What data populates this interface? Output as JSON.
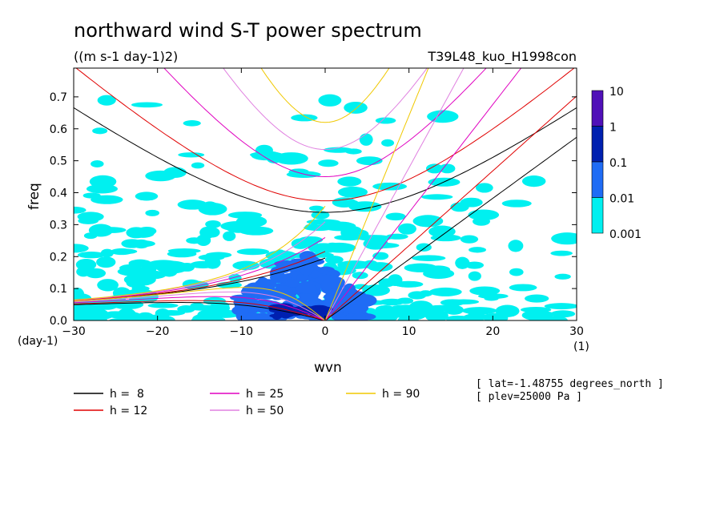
{
  "chart_data": {
    "type": "heatmap",
    "title": "northward wind S-T power spectrum",
    "subtitle": "((m s-1 day-1)2)",
    "run_label": "T39L48_kuo_H1998con",
    "xlabel": "wvn",
    "ylabel": "freq",
    "x_unit_label": "(1)",
    "y_unit_label": "(day-1)",
    "xlim": [
      -30,
      30
    ],
    "ylim": [
      0,
      0.79
    ],
    "xticks": [
      -30,
      -20,
      -10,
      0,
      10,
      20,
      30
    ],
    "xtick_labels": [
      "−30",
      "−20",
      "−10",
      "0",
      "10",
      "20",
      "30"
    ],
    "yticks": [
      0.0,
      0.1,
      0.2,
      0.3,
      0.4,
      0.5,
      0.6,
      0.7
    ],
    "ytick_labels": [
      "0.0",
      "0.1",
      "0.2",
      "0.3",
      "0.4",
      "0.5",
      "0.6",
      "0.7"
    ],
    "colorbar": {
      "levels": [
        "10",
        "1",
        "0.1",
        "0.01",
        "0.001"
      ],
      "colors": [
        "#5010b8",
        "#0020b0",
        "#1f6cf5",
        "#00f0f0"
      ]
    },
    "contour_regions": [
      {
        "level": "0.001-0.01",
        "color": "#00f0f0",
        "description_x_range": [
          -30,
          30
        ],
        "freq_range": [
          0,
          0.68
        ]
      },
      {
        "level": "0.01-0.1",
        "color": "#1f6cf5",
        "x_range": [
          -10,
          5
        ],
        "freq_range": [
          0,
          0.22
        ]
      },
      {
        "level": "0.1-1",
        "color": "#0020b0",
        "x_range": [
          -6,
          0
        ],
        "freq_range": [
          0.01,
          0.05
        ]
      }
    ],
    "dispersion_curves": [
      {
        "label": "h =  8",
        "equivalent_depth": 8,
        "color": "#000000"
      },
      {
        "label": "h = 12",
        "equivalent_depth": 12,
        "color": "#e00000"
      },
      {
        "label": "h = 25",
        "equivalent_depth": 25,
        "color": "#e000c0"
      },
      {
        "label": "h = 50",
        "equivalent_depth": 50,
        "color": "#e080e0"
      },
      {
        "label": "h = 90",
        "equivalent_depth": 90,
        "color": "#f0c800"
      }
    ],
    "notes": [
      "[ lat=-1.48755 degrees_north ]",
      "[ plev=25000 Pa ]"
    ]
  }
}
